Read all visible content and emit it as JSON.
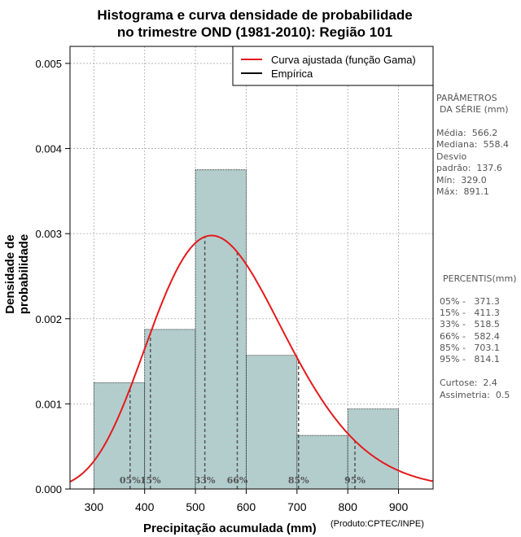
{
  "title_line1": "Histograma e curva densidade de probabilidade",
  "title_line2": "no trimestre OND (1981-2010): Região 101",
  "xlabel": "Precipitação acumulada (mm)",
  "credit": "(Produto:CPTEC/INPE)",
  "ylabel": "Densidade de probabilidade",
  "params": {
    "header1": "PARÂMETROS",
    "header2": "DA SÉRIE (mm)",
    "media": "Média:  566.2",
    "mediana": "Mediana:  558.4",
    "desvio1": "Desvio",
    "desvio2": "padrão:  137.6",
    "min": "Mín:  329.0",
    "max": "Máx:  891.1"
  },
  "percentis": {
    "header": "PERCENTIS(mm)",
    "p05": "05% -   371.3",
    "p15": "15% -   411.3",
    "p33": "33% -   518.5",
    "p66": "66% -   582.4",
    "p85": "85% -   703.1",
    "p95": "95% -   814.1",
    "curtose": "Curtose:  2.4",
    "assimetria": "Assimetria:  0.5"
  },
  "colors": {
    "bar": "#b3cdcd",
    "curve": "#e41a1c",
    "grid": "#aaaaaa"
  },
  "chart_data": {
    "type": "bar",
    "bins": [
      {
        "x0": 300,
        "x1": 400,
        "density": 0.00125
      },
      {
        "x0": 400,
        "x1": 500,
        "density": 0.001875
      },
      {
        "x0": 500,
        "x1": 600,
        "density": 0.00375
      },
      {
        "x0": 600,
        "x1": 700,
        "density": 0.00157
      },
      {
        "x0": 700,
        "x1": 800,
        "density": 0.00063
      },
      {
        "x0": 800,
        "x1": 900,
        "density": 0.00094
      }
    ],
    "curve": {
      "name": "Curva ajustada (função Gama)",
      "mean": 566.2,
      "sd": 137.6,
      "skew": 0.5
    },
    "percentiles": [
      {
        "label": "05%",
        "value": 371.3
      },
      {
        "label": "15%",
        "value": 411.3
      },
      {
        "label": "33%",
        "value": 518.5
      },
      {
        "label": "66%",
        "value": 582.4
      },
      {
        "label": "85%",
        "value": 703.1
      },
      {
        "label": "95%",
        "value": 814.1
      }
    ],
    "legend": [
      "Curva ajustada (função Gama)",
      "Empírica"
    ],
    "xlim": [
      253,
      968
    ],
    "ylim": [
      0,
      0.0052
    ],
    "xticks": [
      300,
      400,
      500,
      600,
      700,
      800,
      900
    ],
    "yticks": [
      "0.000",
      "0.001",
      "0.002",
      "0.003",
      "0.004",
      "0.005"
    ],
    "xlabel": "Precipitação acumulada (mm)",
    "ylabel": "Densidade de probabilidade"
  }
}
